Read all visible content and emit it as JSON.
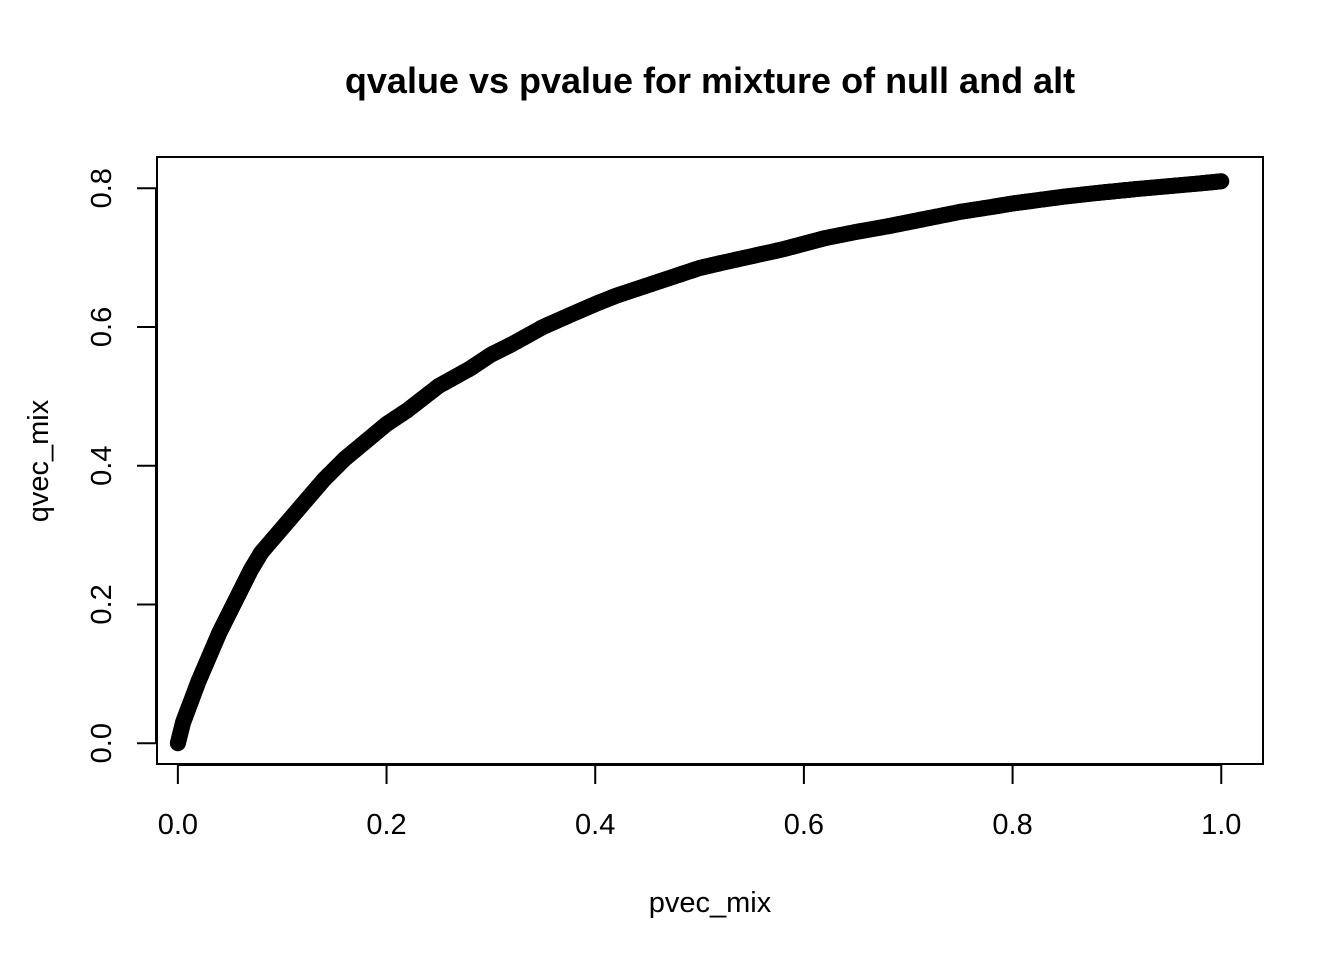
{
  "chart_data": {
    "type": "scatter",
    "title": "qvalue vs pvalue for mixture of null and alt",
    "xlabel": "pvec_mix",
    "ylabel": "qvec_mix",
    "xlim": [
      -0.02,
      1.04
    ],
    "ylim": [
      -0.03,
      0.845
    ],
    "xticks": [
      "0.0",
      "0.2",
      "0.4",
      "0.6",
      "0.8",
      "1.0"
    ],
    "xtick_values": [
      0.0,
      0.2,
      0.4,
      0.6,
      0.8,
      1.0
    ],
    "yticks": [
      "0.0",
      "0.2",
      "0.4",
      "0.6",
      "0.8"
    ],
    "ytick_values": [
      0.0,
      0.2,
      0.4,
      0.6,
      0.8
    ],
    "grid": false,
    "legend": "none",
    "point_color": "#000000",
    "series": [
      {
        "x": [
          0.0,
          0.005,
          0.01,
          0.02,
          0.03,
          0.04,
          0.05,
          0.06,
          0.07,
          0.08,
          0.1,
          0.12,
          0.14,
          0.16,
          0.18,
          0.2,
          0.22,
          0.25,
          0.28,
          0.3,
          0.32,
          0.35,
          0.38,
          0.4,
          0.42,
          0.45,
          0.48,
          0.5,
          0.52,
          0.55,
          0.58,
          0.6,
          0.62,
          0.65,
          0.68,
          0.7,
          0.72,
          0.75,
          0.78,
          0.8,
          0.82,
          0.85,
          0.88,
          0.9,
          0.92,
          0.95,
          0.98,
          1.0
        ],
        "y": [
          0.0,
          0.03,
          0.05,
          0.09,
          0.125,
          0.16,
          0.19,
          0.22,
          0.25,
          0.275,
          0.31,
          0.345,
          0.38,
          0.41,
          0.435,
          0.46,
          0.48,
          0.515,
          0.54,
          0.56,
          0.575,
          0.6,
          0.62,
          0.633,
          0.645,
          0.66,
          0.675,
          0.685,
          0.692,
          0.702,
          0.712,
          0.72,
          0.728,
          0.737,
          0.745,
          0.751,
          0.757,
          0.766,
          0.773,
          0.778,
          0.782,
          0.788,
          0.793,
          0.796,
          0.799,
          0.803,
          0.807,
          0.81
        ]
      }
    ]
  }
}
